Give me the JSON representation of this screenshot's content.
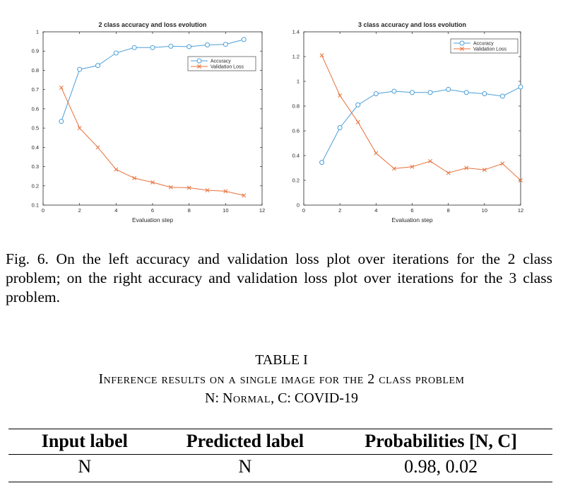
{
  "chart_data": [
    {
      "type": "line",
      "title": "2 class accuracy and loss evolution",
      "xlabel": "Evaluation step",
      "ylabel": "",
      "xlim": [
        0,
        12
      ],
      "ylim": [
        0.1,
        1
      ],
      "xticks": [
        "0",
        "2",
        "4",
        "6",
        "8",
        "10",
        "12"
      ],
      "yticks": [
        "0.1",
        "0.2",
        "0.3",
        "0.4",
        "0.5",
        "0.6",
        "0.7",
        "0.8",
        "0.9",
        "1"
      ],
      "legend": "top-right",
      "series": [
        {
          "name": "Accuracy",
          "color": "#4a9fd8",
          "marker": "circle",
          "x": [
            1,
            2,
            3,
            4,
            5,
            6,
            7,
            8,
            9,
            10,
            11
          ],
          "values": [
            0.535,
            0.805,
            0.825,
            0.89,
            0.918,
            0.918,
            0.925,
            0.923,
            0.932,
            0.935,
            0.96
          ]
        },
        {
          "name": "Validation Loss",
          "color": "#e8703a",
          "marker": "x",
          "x": [
            1,
            2,
            3,
            4,
            5,
            6,
            7,
            8,
            9,
            10,
            11
          ],
          "values": [
            0.71,
            0.5,
            0.4,
            0.285,
            0.24,
            0.218,
            0.193,
            0.19,
            0.177,
            0.172,
            0.15
          ]
        }
      ]
    },
    {
      "type": "line",
      "title": "3 class accuracy and loss evolution",
      "xlabel": "Evaluation step",
      "ylabel": "",
      "xlim": [
        0,
        12
      ],
      "ylim": [
        0,
        1.4
      ],
      "xticks": [
        "0",
        "2",
        "4",
        "6",
        "8",
        "10",
        "12"
      ],
      "yticks": [
        "0",
        "0.2",
        "0.4",
        "0.6",
        "0.8",
        "1",
        "1.2",
        "1.4"
      ],
      "legend": "top-right",
      "series": [
        {
          "name": "Accuracy",
          "color": "#4a9fd8",
          "marker": "circle",
          "x": [
            1,
            2,
            3,
            4,
            5,
            6,
            7,
            8,
            9,
            10,
            11,
            12
          ],
          "values": [
            0.345,
            0.625,
            0.81,
            0.9,
            0.92,
            0.91,
            0.91,
            0.935,
            0.91,
            0.9,
            0.88,
            0.955
          ]
        },
        {
          "name": "Validation Loss",
          "color": "#e8703a",
          "marker": "x",
          "x": [
            1,
            2,
            3,
            4,
            5,
            6,
            7,
            8,
            9,
            10,
            11,
            12
          ],
          "values": [
            1.21,
            0.885,
            0.67,
            0.42,
            0.295,
            0.31,
            0.355,
            0.26,
            0.3,
            0.285,
            0.335,
            0.2
          ]
        }
      ]
    }
  ],
  "caption": "Fig. 6.  On the left accuracy and validation loss plot over iterations for the 2 class problem; on the right accuracy and validation loss plot over iterations for the 3 class problem.",
  "table": {
    "number": "TABLE I",
    "title_line1": "Inference results on a single image for the 2 class problem",
    "title_line2_prefix": "N: ",
    "title_line2_normal": "Normal",
    "title_line2_suffix": ", C: COVID-19",
    "headers": [
      "Input label",
      "Predicted label",
      "Probabilities [N, C]"
    ],
    "rows": [
      [
        "N",
        "N",
        "0.98, 0.02"
      ]
    ]
  }
}
